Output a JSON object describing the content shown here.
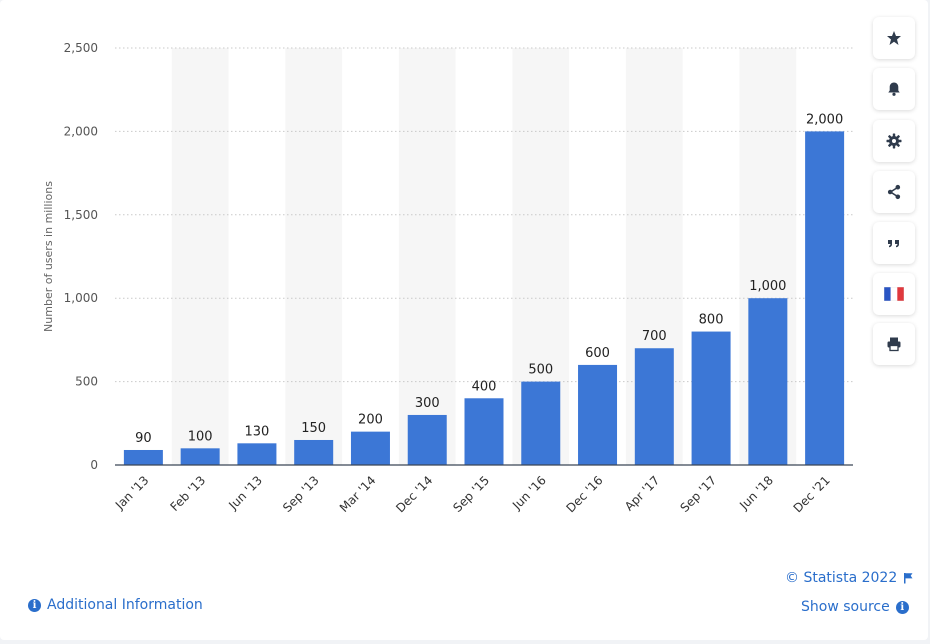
{
  "chart_data": {
    "type": "bar",
    "categories": [
      "Jan '13",
      "Feb '13",
      "Jun '13",
      "Sep '13",
      "Mar '14",
      "Dec '14",
      "Sep '15",
      "Jun '16",
      "Dec '16",
      "Apr '17",
      "Sep '17",
      "Jun '18",
      "Dec '21"
    ],
    "values": [
      90,
      100,
      130,
      150,
      200,
      300,
      400,
      500,
      600,
      700,
      800,
      1000,
      2000
    ],
    "data_labels": [
      "90",
      "100",
      "130",
      "150",
      "200",
      "300",
      "400",
      "500",
      "600",
      "700",
      "800",
      "1,000",
      "2,000"
    ],
    "ylabel": "Number of users in millions",
    "ylim": [
      0,
      2500
    ],
    "yticks": [
      0,
      500,
      1000,
      1500,
      2000,
      2500
    ],
    "ytick_labels": [
      "0",
      "500",
      "1,000",
      "1,500",
      "2,000",
      "2,500"
    ],
    "bar_color": "#3c77d6",
    "grid": true,
    "alt_band_color": "#f6f6f6"
  },
  "sidebar": {
    "buttons": [
      {
        "name": "favorite-star-icon",
        "color": "#2f3b4c"
      },
      {
        "name": "notification-bell-icon",
        "color": "#2f3b4c"
      },
      {
        "name": "settings-gear-icon",
        "color": "#2f3b4c"
      },
      {
        "name": "share-icon",
        "color": "#2f3b4c"
      },
      {
        "name": "cite-quote-icon",
        "color": "#2f3b4c"
      },
      {
        "name": "language-flag-icon",
        "color": "#2a55c4"
      },
      {
        "name": "print-icon",
        "color": "#2f3b4c"
      }
    ]
  },
  "footer": {
    "copyright": "© Statista 2022",
    "show_source": "Show source",
    "additional_info": "Additional Information",
    "link_color": "#2a6ecb"
  }
}
